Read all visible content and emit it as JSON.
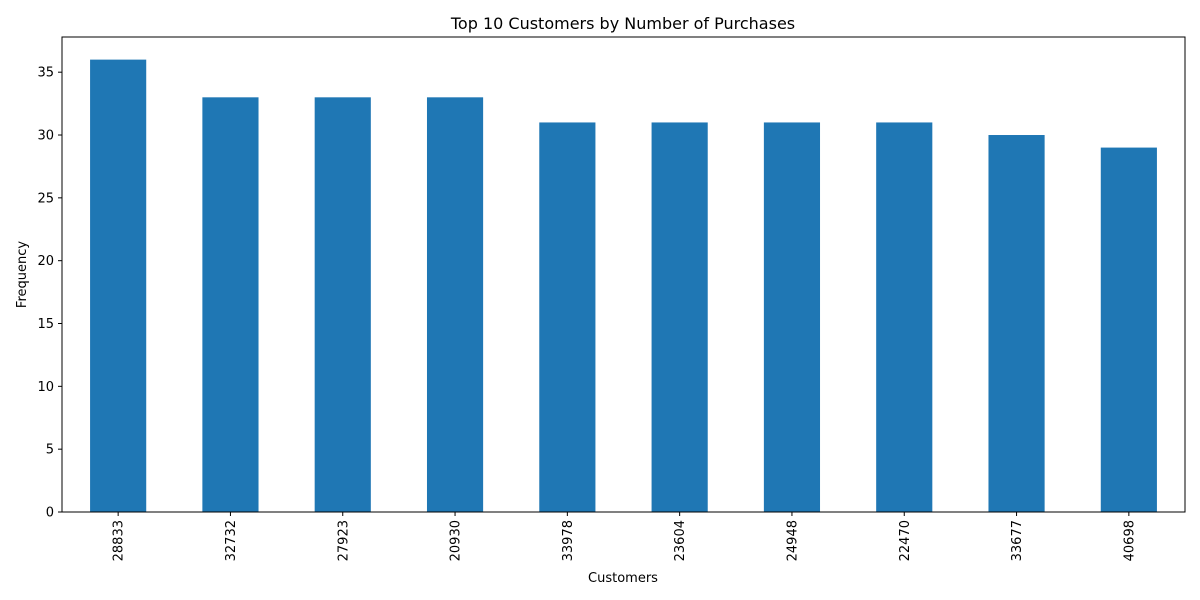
{
  "chart_data": {
    "type": "bar",
    "title": "Top 10 Customers by Number of Purchases",
    "xlabel": "Customers",
    "ylabel": "Frequency",
    "categories": [
      "28833",
      "32732",
      "27923",
      "20930",
      "33978",
      "23604",
      "24948",
      "22470",
      "33677",
      "40698"
    ],
    "values": [
      36,
      33,
      33,
      33,
      31,
      31,
      31,
      31,
      30,
      29
    ],
    "ylim": [
      0,
      37.8
    ],
    "yticks": [
      0,
      5,
      10,
      15,
      20,
      25,
      30,
      35
    ],
    "bar_color": "#1f77b4",
    "grid": false,
    "legend": "none"
  }
}
